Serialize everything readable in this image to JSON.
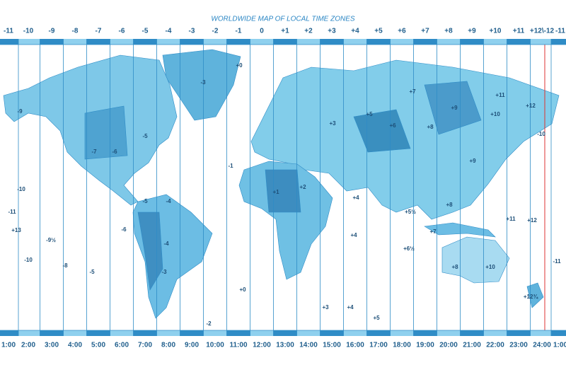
{
  "title": "WORLDWIDE MAP OF LOCAL TIME ZONES",
  "top_offsets": [
    "-11",
    "-10",
    "-9",
    "-8",
    "-7",
    "-6",
    "-5",
    "-4",
    "-3",
    "-2",
    "-1",
    "0",
    "+1",
    "+2",
    "+3",
    "+4",
    "+5",
    "+6",
    "+7",
    "+8",
    "+9",
    "+10",
    "+11",
    "+12\\-12",
    "-11"
  ],
  "bottom_times": [
    "1:00",
    "2:00",
    "3:00",
    "4:00",
    "5:00",
    "6:00",
    "7:00",
    "8:00",
    "9:00",
    "10:00",
    "11:00",
    "12:00",
    "13:00",
    "14:00",
    "15:00",
    "16:00",
    "17:00",
    "18:00",
    "19:00",
    "20:00",
    "21:00",
    "22:00",
    "23:00",
    "24:00",
    "1:00"
  ],
  "map_labels": [
    "-9",
    "-3",
    "-7",
    "-6",
    "-5",
    "-4",
    "-5",
    "-3",
    "-4",
    "-1",
    "+0",
    "+1",
    "+2",
    "+3",
    "+4",
    "+5",
    "+6",
    "+7",
    "+8",
    "+9",
    "+10",
    "+11",
    "+12",
    "+8",
    "+9",
    "+10",
    "+8",
    "+7",
    "+5½",
    "+6½",
    "+4",
    "-10",
    "-11",
    "+13",
    "-9½",
    "-10",
    "-8",
    "-5",
    "-6",
    "-2",
    "+0",
    "+3",
    "+4",
    "+5",
    "+11",
    "+12",
    "-11",
    "+12¾",
    "-10"
  ]
}
